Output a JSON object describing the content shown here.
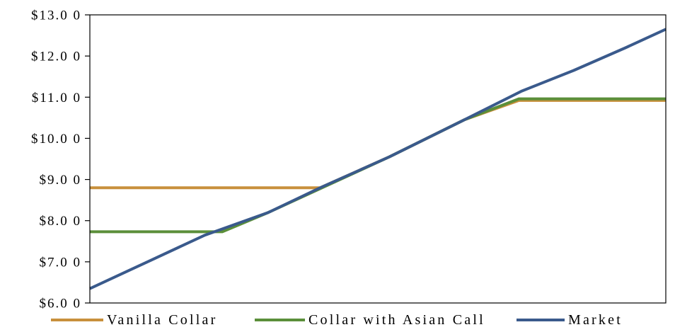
{
  "chart_data": {
    "type": "line",
    "title": "",
    "xlabel": "",
    "ylabel": "",
    "ylim": [
      6,
      13
    ],
    "yticks": [
      6,
      7,
      8,
      9,
      10,
      11,
      12,
      13
    ],
    "ytick_labels": [
      "$6.0 0",
      "$7.0 0",
      "$8.0 0",
      "$9.0 0",
      "$10.0 0",
      "$11.0 0",
      "$12.0 0",
      "$13.0 0"
    ],
    "xlim": [
      0,
      1
    ],
    "grid": false,
    "legend_position": "bottom",
    "series": [
      {
        "name": "Vanilla Collar",
        "color": "#c8903c",
        "x": [
          0,
          0.4,
          0.52,
          0.65,
          0.745,
          1.0
        ],
        "y": [
          8.8,
          8.8,
          9.55,
          10.45,
          10.92,
          10.92
        ]
      },
      {
        "name": "Collar with Asian Call",
        "color": "#5b8f3a",
        "x": [
          0,
          0.23,
          0.31,
          0.52,
          0.65,
          0.745,
          1.0
        ],
        "y": [
          7.73,
          7.73,
          8.2,
          9.55,
          10.45,
          10.96,
          10.96
        ]
      },
      {
        "name": "Market",
        "color": "#3a5a8c",
        "x": [
          0,
          0.1,
          0.2,
          0.31,
          0.4,
          0.52,
          0.65,
          0.75,
          0.84,
          0.93,
          1.0
        ],
        "y": [
          6.35,
          7.0,
          7.65,
          8.2,
          8.8,
          9.55,
          10.45,
          11.15,
          11.65,
          12.2,
          12.65
        ]
      }
    ]
  }
}
